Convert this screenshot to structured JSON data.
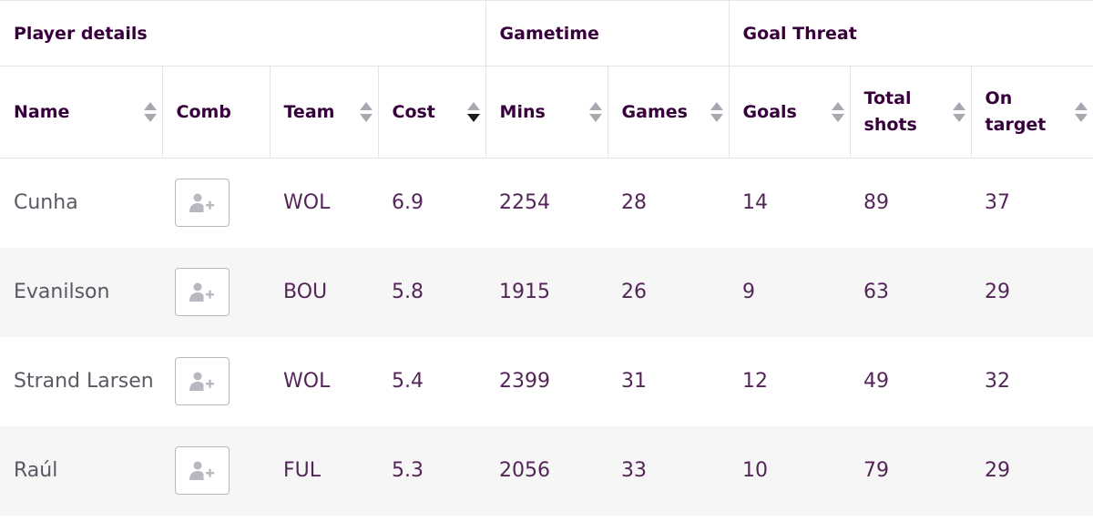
{
  "groups": [
    "Player details",
    "Gametime",
    "Goal Threat"
  ],
  "columns": [
    {
      "label": "Name",
      "sort": "none"
    },
    {
      "label": "Comb",
      "sort": null
    },
    {
      "label": "Team",
      "sort": "none"
    },
    {
      "label": "Cost",
      "sort": "descending"
    },
    {
      "label": "Mins",
      "sort": "none"
    },
    {
      "label": "Games",
      "sort": "none"
    },
    {
      "label": "Goals",
      "sort": "none"
    },
    {
      "label": "Total shots",
      "sort": "none"
    },
    {
      "label": "On target",
      "sort": "none"
    }
  ],
  "comb_icon": "add-player-icon",
  "rows": [
    {
      "name": "Cunha",
      "team": "WOL",
      "cost": "6.9",
      "mins": "2254",
      "games": "28",
      "goals": "14",
      "shots": "89",
      "on_target": "37"
    },
    {
      "name": "Evanilson",
      "team": "BOU",
      "cost": "5.8",
      "mins": "1915",
      "games": "26",
      "goals": "9",
      "shots": "63",
      "on_target": "29"
    },
    {
      "name": "Strand Larsen",
      "team": "WOL",
      "cost": "5.4",
      "mins": "2399",
      "games": "31",
      "goals": "12",
      "shots": "49",
      "on_target": "32"
    },
    {
      "name": "Raúl",
      "team": "FUL",
      "cost": "5.3",
      "mins": "2056",
      "games": "33",
      "goals": "10",
      "shots": "79",
      "on_target": "29"
    }
  ],
  "colors": {
    "text": "#37003c",
    "border": "#e3e3e8",
    "row_shade": "#f6f6f6",
    "icon": "#b8b8c0"
  }
}
